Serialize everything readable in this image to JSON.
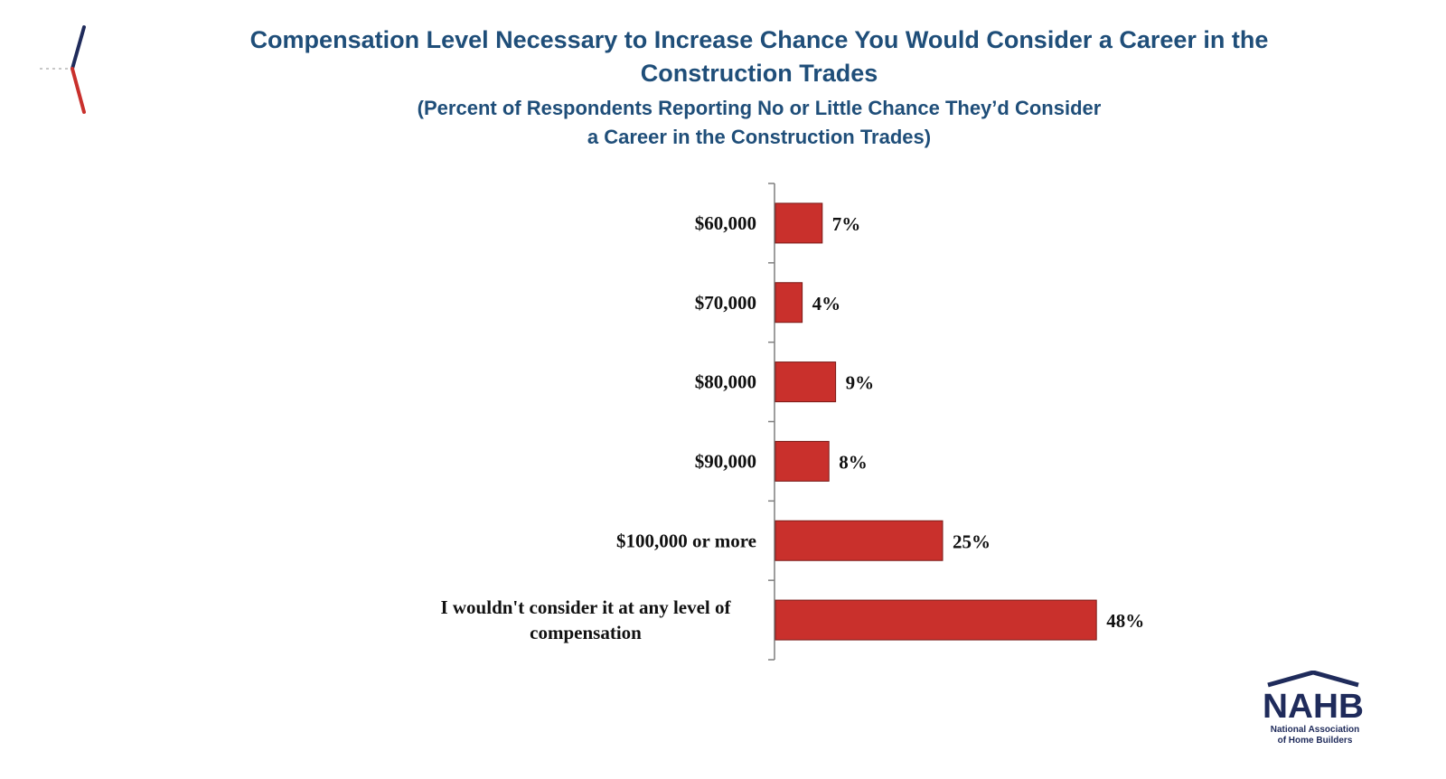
{
  "colors": {
    "title": "#1f4e79",
    "bar": "#c9302c",
    "bar_border": "#7a1a17",
    "text": "#111111",
    "axis": "#7f7f7f",
    "accent_navy": "#1f2b5b",
    "accent_red": "#c9302c"
  },
  "chart_data": {
    "type": "bar",
    "orientation": "horizontal",
    "title": "Compensation Level Necessary to Increase Chance You Would Consider a Career in the Construction Trades",
    "subtitle_line1": "(Percent of Respondents Reporting No or Little Chance They’d Consider",
    "subtitle_line2": "a Career in the Construction Trades)",
    "categories": [
      "$60,000",
      "$70,000",
      "$80,000",
      "$90,000",
      "$100,000 or more",
      "I wouldn't consider it at any level of compensation"
    ],
    "category_lines": [
      [
        "$60,000"
      ],
      [
        "$70,000"
      ],
      [
        "$80,000"
      ],
      [
        "$90,000"
      ],
      [
        "$100,000 or more"
      ],
      [
        "I wouldn't consider it at any level of",
        "compensation"
      ]
    ],
    "values": [
      7,
      4,
      9,
      8,
      25,
      48
    ],
    "value_labels": [
      "7%",
      "4%",
      "9%",
      "8%",
      "25%",
      "48%"
    ],
    "xlim": [
      0,
      50
    ],
    "grid": false,
    "legend": "none"
  },
  "logo": {
    "name": "NAHB",
    "subtitle_line1": "National Association",
    "subtitle_line2": "of Home Builders",
    "icon": "house-roof-icon"
  }
}
